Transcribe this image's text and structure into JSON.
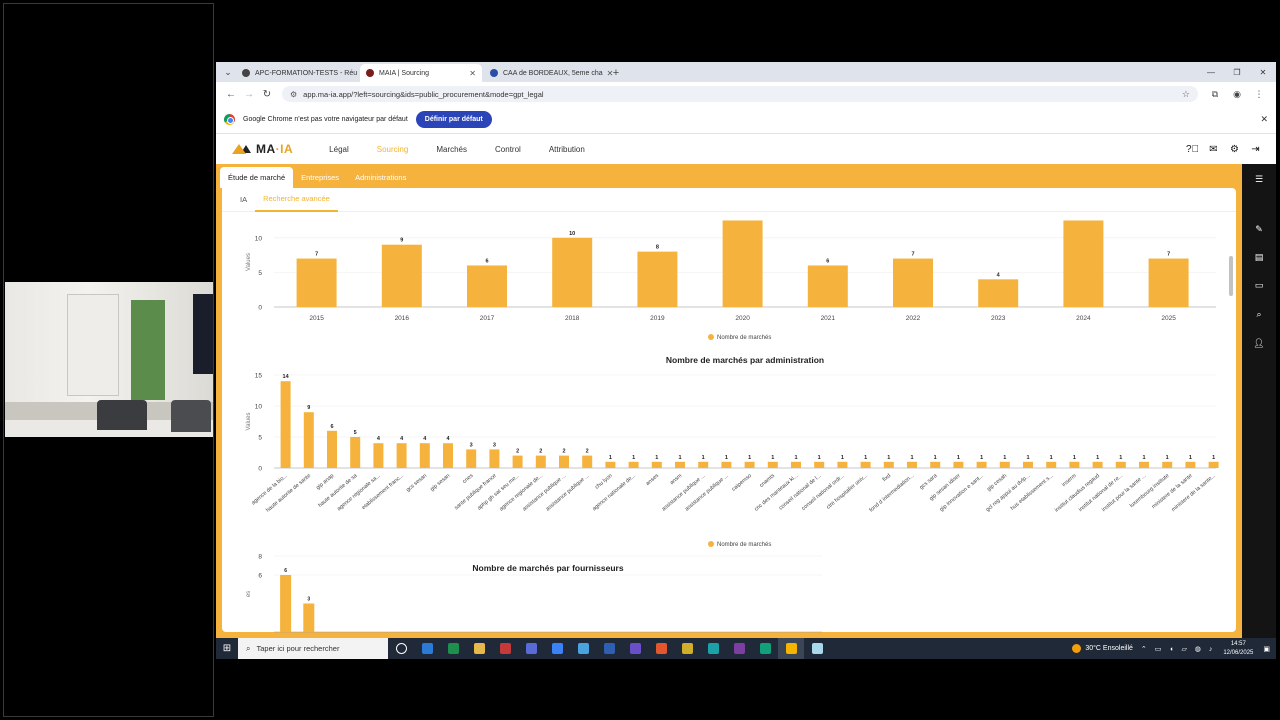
{
  "browser": {
    "tabs": [
      {
        "title": "APC-FORMATION-TESTS - Réu",
        "color": "#444444",
        "active": false
      },
      {
        "title": "MAIA | Sourcing",
        "color": "#7a1c1c",
        "active": true
      },
      {
        "title": "CAA de BORDEAUX, 5eme cha",
        "color": "#2a4ea6",
        "active": false
      }
    ],
    "url": "app.ma-ia.app/?left=sourcing&ids=public_procurement&mode=gpt_legal",
    "infobar_text": "Google Chrome n'est pas votre navigateur par défaut",
    "infobar_button": "Définir par défaut"
  },
  "app": {
    "brand_left": "MA",
    "brand_sep": "·",
    "brand_right": "IA",
    "menu": [
      "Légal",
      "Sourcing",
      "Marchés",
      "Control",
      "Attribution"
    ],
    "menu_active": 1,
    "subtabs": [
      "Étude de marché",
      "Entreprises",
      "Administrations"
    ],
    "innertabs": [
      "IA",
      "Recherche avancée"
    ]
  },
  "chart_data": [
    {
      "type": "bar",
      "title": "",
      "ylabel": "Values",
      "categories": [
        "2015",
        "2016",
        "2017",
        "2018",
        "2019",
        "2020",
        "2021",
        "2022",
        "2023",
        "2024",
        "2025"
      ],
      "values": [
        7,
        9,
        6,
        10,
        8,
        12.5,
        6,
        7,
        4,
        12.5,
        7
      ],
      "labels": [
        "7",
        "9",
        "6",
        "10",
        "8",
        "",
        "6",
        "7",
        "4",
        "",
        "7"
      ],
      "ylim": [
        0,
        13
      ],
      "yticks": [
        0,
        5,
        10
      ],
      "legend": "Nombre de marchés",
      "legend_position": "bottom-center"
    },
    {
      "type": "bar",
      "title": "Nombre de marchés par administration",
      "ylabel": "Values",
      "categories": [
        "agence de la bio...",
        "haute autorite de sante",
        "gip anap",
        "haute autorite de sa",
        "agence regionale sa...",
        "etablissement franc...",
        "gcs sesan",
        "gip sesan",
        "cnes",
        "sante publique france",
        "aphp gh sat seu me...",
        "agence regionale de...",
        "assistance publique ...",
        "assistance publique ...",
        "chu lyon",
        "agence nationale de...",
        "anses",
        "ansm",
        "assistance publique ...",
        "assistance publique ...",
        "caipemso",
        "cnamts",
        "cnc des manteaux ki...",
        "conseil national de l...",
        "conseil national ordr...",
        "ctre hospitalier univ...",
        "fixd",
        "fond d intermediation...",
        "gcs sara",
        "gip sesan idiser",
        "gip innovation e sant...",
        "gip cesah",
        "gcl reg appui au dvlp...",
        "hus etablissement s...",
        "inserm",
        "institut claudius regaud",
        "institut national de re...",
        "institut pour la sante ...",
        "luxembourg institute",
        "ministere de la sante",
        "ministere de la sante..."
      ],
      "values": [
        14,
        9,
        6,
        5,
        4,
        4,
        4,
        4,
        3,
        3,
        2,
        2,
        2,
        2,
        1,
        1,
        1,
        1,
        1,
        1,
        1,
        1,
        1,
        1,
        1,
        1,
        1,
        1,
        1,
        1,
        1,
        1,
        1,
        1,
        1,
        1,
        1,
        1,
        1,
        1,
        1
      ],
      "ylim": [
        0,
        15
      ],
      "yticks": [
        0,
        5,
        10,
        15
      ],
      "legend": "Nombre de marchés",
      "legend_position": "bottom-center"
    },
    {
      "type": "bar",
      "title": "Nombre de marchés par fournisseurs",
      "ylabel": "es",
      "categories": [
        "",
        ""
      ],
      "values": [
        6,
        3
      ],
      "ylim": [
        0,
        8
      ],
      "yticks": [
        6,
        8
      ],
      "legend": "",
      "legend_position": "bottom-center"
    }
  ],
  "taskbar": {
    "search_placeholder": "Taper ici pour rechercher",
    "weather": "30°C  Ensoleillé",
    "time": "14:57",
    "date": "12/06/2025"
  },
  "colors": {
    "accent": "#f5b33e",
    "bar": "#f5b33e",
    "sidebar": "#141414",
    "default_button": "#2b45b8"
  }
}
